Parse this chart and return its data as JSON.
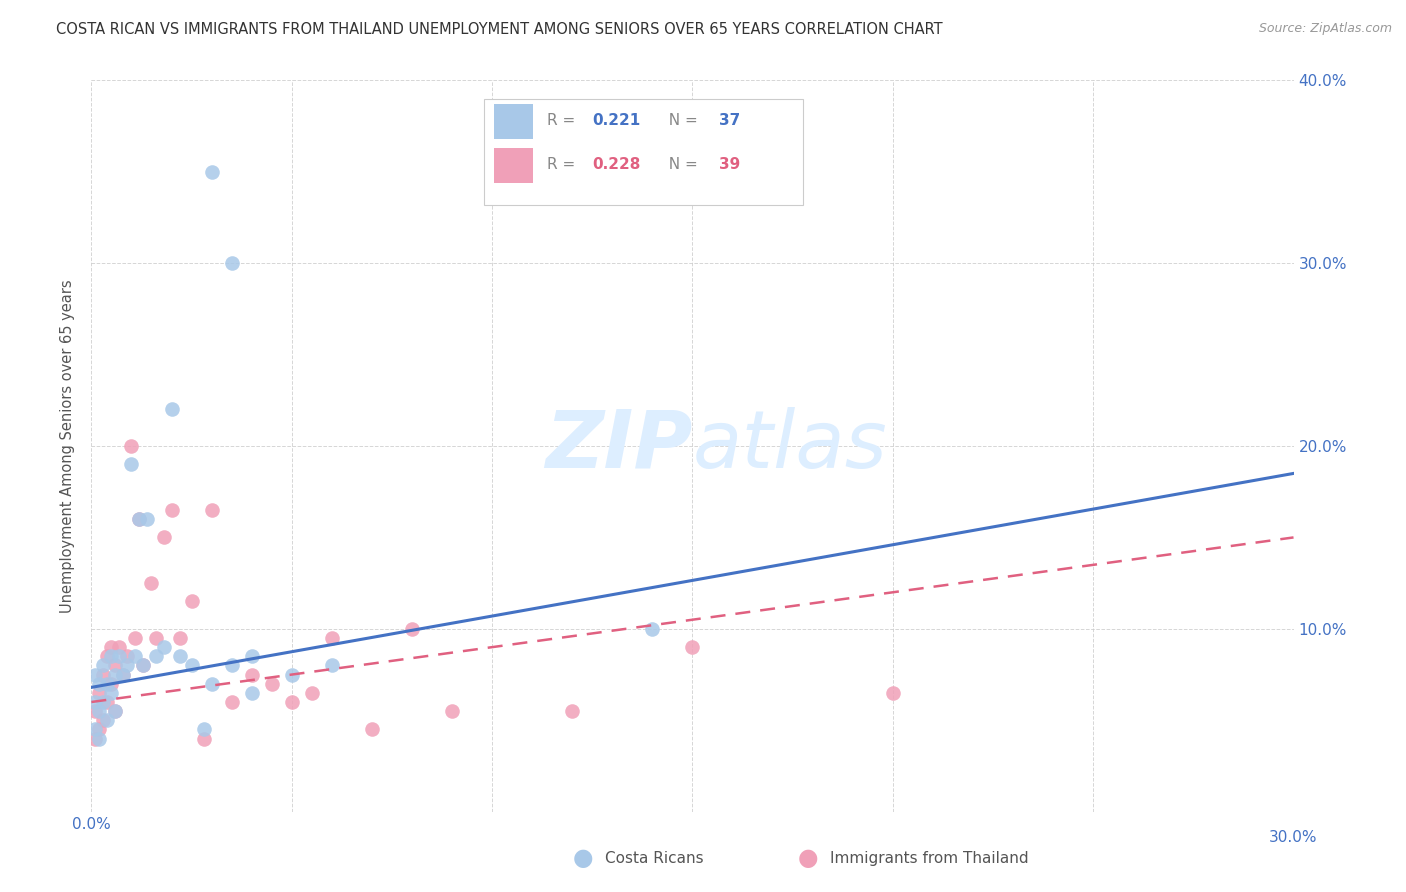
{
  "title": "COSTA RICAN VS IMMIGRANTS FROM THAILAND UNEMPLOYMENT AMONG SENIORS OVER 65 YEARS CORRELATION CHART",
  "source": "Source: ZipAtlas.com",
  "ylabel": "Unemployment Among Seniors over 65 years",
  "xlim": [
    0.0,
    0.3
  ],
  "ylim": [
    0.0,
    0.4
  ],
  "xticks": [
    0.0,
    0.05,
    0.1,
    0.15,
    0.2,
    0.25,
    0.3
  ],
  "yticks": [
    0.0,
    0.1,
    0.2,
    0.3,
    0.4
  ],
  "costa_rican_R": 0.221,
  "costa_rican_N": 37,
  "thailand_R": 0.228,
  "thailand_N": 39,
  "costa_rican_color": "#a8c8e8",
  "thailand_color": "#f0a0b8",
  "costa_rican_line_color": "#4472c4",
  "thailand_line_color": "#e06080",
  "background_color": "#ffffff",
  "watermark_color": "#ddeeff",
  "costa_rican_x": [
    0.001,
    0.001,
    0.001,
    0.002,
    0.002,
    0.002,
    0.003,
    0.003,
    0.004,
    0.004,
    0.005,
    0.005,
    0.006,
    0.006,
    0.007,
    0.008,
    0.009,
    0.01,
    0.011,
    0.012,
    0.013,
    0.014,
    0.016,
    0.018,
    0.02,
    0.022,
    0.025,
    0.028,
    0.03,
    0.035,
    0.04,
    0.05,
    0.06,
    0.14,
    0.03,
    0.035,
    0.04
  ],
  "costa_rican_y": [
    0.075,
    0.06,
    0.045,
    0.07,
    0.055,
    0.04,
    0.08,
    0.06,
    0.07,
    0.05,
    0.085,
    0.065,
    0.075,
    0.055,
    0.085,
    0.075,
    0.08,
    0.19,
    0.085,
    0.16,
    0.08,
    0.16,
    0.085,
    0.09,
    0.22,
    0.085,
    0.08,
    0.045,
    0.07,
    0.08,
    0.085,
    0.075,
    0.08,
    0.1,
    0.35,
    0.3,
    0.065
  ],
  "thailand_x": [
    0.001,
    0.001,
    0.002,
    0.002,
    0.003,
    0.003,
    0.004,
    0.004,
    0.005,
    0.005,
    0.006,
    0.006,
    0.007,
    0.008,
    0.009,
    0.01,
    0.011,
    0.012,
    0.013,
    0.015,
    0.016,
    0.018,
    0.02,
    0.022,
    0.025,
    0.028,
    0.03,
    0.035,
    0.04,
    0.045,
    0.05,
    0.055,
    0.06,
    0.07,
    0.08,
    0.09,
    0.12,
    0.15,
    0.2
  ],
  "thailand_y": [
    0.055,
    0.04,
    0.065,
    0.045,
    0.075,
    0.05,
    0.085,
    0.06,
    0.09,
    0.07,
    0.08,
    0.055,
    0.09,
    0.075,
    0.085,
    0.2,
    0.095,
    0.16,
    0.08,
    0.125,
    0.095,
    0.15,
    0.165,
    0.095,
    0.115,
    0.04,
    0.165,
    0.06,
    0.075,
    0.07,
    0.06,
    0.065,
    0.095,
    0.045,
    0.1,
    0.055,
    0.055,
    0.09,
    0.065
  ],
  "cr_line_x": [
    0.0,
    0.3
  ],
  "cr_line_y": [
    0.068,
    0.185
  ],
  "th_line_x": [
    0.0,
    0.3
  ],
  "th_line_y": [
    0.06,
    0.15
  ]
}
